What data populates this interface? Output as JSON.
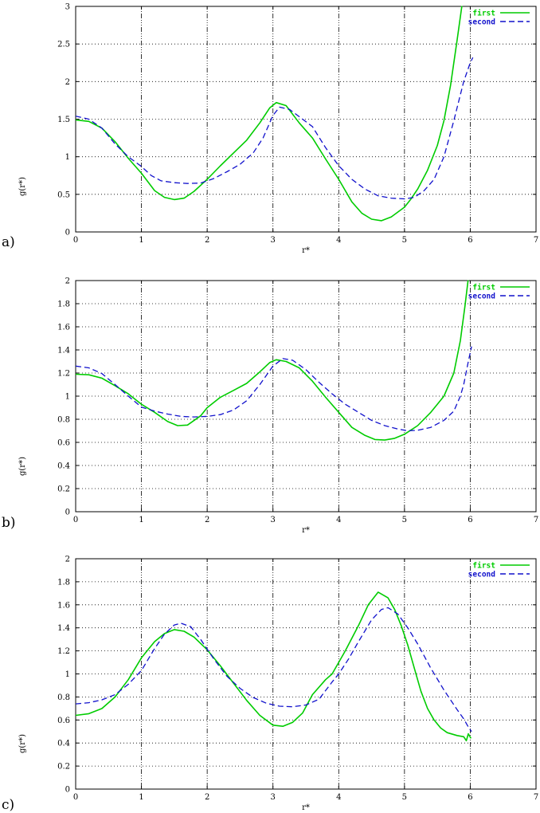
{
  "page": {
    "background": "#ffffff",
    "text_color": "#000000"
  },
  "series_colors": {
    "first": "#00cc00",
    "second": "#1111cc"
  },
  "chart_data": [
    {
      "type": "line",
      "panel_label": "a)",
      "title": "",
      "xlabel": "r*",
      "ylabel": "g(r*)",
      "xlim": [
        0,
        7
      ],
      "ylim": [
        0,
        3
      ],
      "xticks": [
        0,
        1,
        2,
        3,
        4,
        5,
        6,
        7
      ],
      "yticks": [
        0,
        0.5,
        1,
        1.5,
        2,
        2.5,
        3
      ],
      "grid": true,
      "legend_position": "top-right",
      "series": [
        {
          "name": "first",
          "color": "#00cc00",
          "style": "solid",
          "points": [
            [
              0,
              1.49
            ],
            [
              0.2,
              1.47
            ],
            [
              0.4,
              1.38
            ],
            [
              0.6,
              1.2
            ],
            [
              0.8,
              0.98
            ],
            [
              1,
              0.78
            ],
            [
              1.2,
              0.55
            ],
            [
              1.35,
              0.46
            ],
            [
              1.5,
              0.43
            ],
            [
              1.65,
              0.45
            ],
            [
              1.8,
              0.54
            ],
            [
              2,
              0.7
            ],
            [
              2.2,
              0.88
            ],
            [
              2.4,
              1.05
            ],
            [
              2.6,
              1.22
            ],
            [
              2.8,
              1.45
            ],
            [
              2.95,
              1.65
            ],
            [
              3.05,
              1.72
            ],
            [
              3.2,
              1.68
            ],
            [
              3.4,
              1.45
            ],
            [
              3.6,
              1.25
            ],
            [
              3.8,
              0.97
            ],
            [
              4,
              0.7
            ],
            [
              4.2,
              0.4
            ],
            [
              4.35,
              0.25
            ],
            [
              4.5,
              0.17
            ],
            [
              4.65,
              0.15
            ],
            [
              4.8,
              0.2
            ],
            [
              5,
              0.33
            ],
            [
              5.1,
              0.44
            ],
            [
              5.2,
              0.57
            ],
            [
              5.35,
              0.82
            ],
            [
              5.5,
              1.15
            ],
            [
              5.6,
              1.48
            ],
            [
              5.7,
              1.95
            ],
            [
              5.8,
              2.55
            ],
            [
              5.88,
              3.05
            ]
          ]
        },
        {
          "name": "second",
          "color": "#1111cc",
          "style": "dashed",
          "points": [
            [
              0,
              1.54
            ],
            [
              0.2,
              1.5
            ],
            [
              0.4,
              1.38
            ],
            [
              0.6,
              1.17
            ],
            [
              0.8,
              1
            ],
            [
              1,
              0.87
            ],
            [
              1.15,
              0.75
            ],
            [
              1.3,
              0.68
            ],
            [
              1.5,
              0.655
            ],
            [
              1.7,
              0.645
            ],
            [
              1.9,
              0.65
            ],
            [
              2.1,
              0.71
            ],
            [
              2.3,
              0.8
            ],
            [
              2.5,
              0.9
            ],
            [
              2.7,
              1.05
            ],
            [
              2.85,
              1.25
            ],
            [
              3,
              1.55
            ],
            [
              3.1,
              1.66
            ],
            [
              3.25,
              1.63
            ],
            [
              3.45,
              1.5
            ],
            [
              3.6,
              1.4
            ],
            [
              3.8,
              1.12
            ],
            [
              4,
              0.88
            ],
            [
              4.2,
              0.7
            ],
            [
              4.4,
              0.57
            ],
            [
              4.6,
              0.48
            ],
            [
              4.8,
              0.45
            ],
            [
              5,
              0.44
            ],
            [
              5.15,
              0.46
            ],
            [
              5.3,
              0.55
            ],
            [
              5.45,
              0.7
            ],
            [
              5.6,
              1
            ],
            [
              5.75,
              1.48
            ],
            [
              5.9,
              2
            ],
            [
              6,
              2.25
            ],
            [
              6.04,
              2.32
            ]
          ]
        }
      ]
    },
    {
      "type": "line",
      "panel_label": "b)",
      "title": "",
      "xlabel": "r*",
      "ylabel": "g(r*)",
      "xlim": [
        0,
        7
      ],
      "ylim": [
        0,
        2
      ],
      "xticks": [
        0,
        1,
        2,
        3,
        4,
        5,
        6,
        7
      ],
      "yticks": [
        0,
        0.2,
        0.4,
        0.6,
        0.8,
        1,
        1.2,
        1.4,
        1.6,
        1.8,
        2
      ],
      "grid": true,
      "legend_position": "top-right",
      "series": [
        {
          "name": "first",
          "color": "#00cc00",
          "style": "solid",
          "points": [
            [
              0,
              1.19
            ],
            [
              0.2,
              1.185
            ],
            [
              0.4,
              1.155
            ],
            [
              0.6,
              1.09
            ],
            [
              0.8,
              1.02
            ],
            [
              1,
              0.93
            ],
            [
              1.2,
              0.86
            ],
            [
              1.4,
              0.78
            ],
            [
              1.55,
              0.745
            ],
            [
              1.7,
              0.75
            ],
            [
              1.9,
              0.83
            ],
            [
              2,
              0.9
            ],
            [
              2.2,
              0.99
            ],
            [
              2.4,
              1.05
            ],
            [
              2.6,
              1.11
            ],
            [
              2.8,
              1.21
            ],
            [
              2.95,
              1.29
            ],
            [
              3.05,
              1.315
            ],
            [
              3.2,
              1.3
            ],
            [
              3.4,
              1.245
            ],
            [
              3.6,
              1.13
            ],
            [
              3.8,
              0.99
            ],
            [
              4,
              0.86
            ],
            [
              4.2,
              0.73
            ],
            [
              4.4,
              0.66
            ],
            [
              4.55,
              0.625
            ],
            [
              4.7,
              0.62
            ],
            [
              4.85,
              0.635
            ],
            [
              5,
              0.67
            ],
            [
              5.2,
              0.745
            ],
            [
              5.4,
              0.86
            ],
            [
              5.6,
              1
            ],
            [
              5.75,
              1.2
            ],
            [
              5.85,
              1.48
            ],
            [
              5.92,
              1.78
            ],
            [
              5.97,
              2.02
            ]
          ]
        },
        {
          "name": "second",
          "color": "#1111cc",
          "style": "dashed",
          "points": [
            [
              0,
              1.26
            ],
            [
              0.2,
              1.245
            ],
            [
              0.4,
              1.195
            ],
            [
              0.6,
              1.1
            ],
            [
              0.8,
              1
            ],
            [
              1,
              0.905
            ],
            [
              1.2,
              0.87
            ],
            [
              1.4,
              0.845
            ],
            [
              1.6,
              0.825
            ],
            [
              1.8,
              0.82
            ],
            [
              2,
              0.825
            ],
            [
              2.2,
              0.84
            ],
            [
              2.4,
              0.88
            ],
            [
              2.6,
              0.96
            ],
            [
              2.8,
              1.1
            ],
            [
              3,
              1.26
            ],
            [
              3.15,
              1.325
            ],
            [
              3.3,
              1.31
            ],
            [
              3.5,
              1.23
            ],
            [
              3.7,
              1.12
            ],
            [
              3.9,
              1.02
            ],
            [
              4.1,
              0.93
            ],
            [
              4.3,
              0.86
            ],
            [
              4.5,
              0.79
            ],
            [
              4.7,
              0.745
            ],
            [
              4.9,
              0.715
            ],
            [
              5.05,
              0.7
            ],
            [
              5.2,
              0.705
            ],
            [
              5.4,
              0.73
            ],
            [
              5.6,
              0.79
            ],
            [
              5.75,
              0.87
            ],
            [
              5.85,
              1
            ],
            [
              5.9,
              1.1
            ],
            [
              5.97,
              1.3
            ],
            [
              6.02,
              1.43
            ]
          ]
        }
      ]
    },
    {
      "type": "line",
      "panel_label": "c)",
      "title": "",
      "xlabel": "r*",
      "ylabel": "g(r*)",
      "xlim": [
        0,
        7
      ],
      "ylim": [
        0,
        2
      ],
      "xticks": [
        0,
        1,
        2,
        3,
        4,
        5,
        6,
        7
      ],
      "yticks": [
        0,
        0.2,
        0.4,
        0.6,
        0.8,
        1,
        1.2,
        1.4,
        1.6,
        1.8,
        2
      ],
      "grid": true,
      "legend_position": "top-right",
      "series": [
        {
          "name": "first",
          "color": "#00cc00",
          "style": "solid",
          "points": [
            [
              0,
              0.64
            ],
            [
              0.2,
              0.655
            ],
            [
              0.4,
              0.7
            ],
            [
              0.6,
              0.8
            ],
            [
              0.8,
              0.95
            ],
            [
              1,
              1.14
            ],
            [
              1.2,
              1.28
            ],
            [
              1.35,
              1.35
            ],
            [
              1.5,
              1.385
            ],
            [
              1.65,
              1.37
            ],
            [
              1.8,
              1.32
            ],
            [
              2,
              1.21
            ],
            [
              2.2,
              1.07
            ],
            [
              2.4,
              0.92
            ],
            [
              2.6,
              0.77
            ],
            [
              2.8,
              0.64
            ],
            [
              3,
              0.555
            ],
            [
              3.15,
              0.545
            ],
            [
              3.3,
              0.58
            ],
            [
              3.45,
              0.66
            ],
            [
              3.6,
              0.82
            ],
            [
              3.8,
              0.95
            ],
            [
              3.9,
              1
            ],
            [
              4.1,
              1.2
            ],
            [
              4.3,
              1.42
            ],
            [
              4.45,
              1.6
            ],
            [
              4.6,
              1.71
            ],
            [
              4.75,
              1.66
            ],
            [
              4.85,
              1.56
            ],
            [
              4.95,
              1.42
            ],
            [
              5.05,
              1.25
            ],
            [
              5.15,
              1.05
            ],
            [
              5.25,
              0.85
            ],
            [
              5.35,
              0.7
            ],
            [
              5.45,
              0.6
            ],
            [
              5.55,
              0.53
            ],
            [
              5.65,
              0.49
            ],
            [
              5.8,
              0.465
            ],
            [
              5.9,
              0.455
            ],
            [
              5.94,
              0.42
            ],
            [
              5.97,
              0.48
            ],
            [
              6.01,
              0.44
            ]
          ]
        },
        {
          "name": "second",
          "color": "#1111cc",
          "style": "dashed",
          "points": [
            [
              0,
              0.74
            ],
            [
              0.2,
              0.75
            ],
            [
              0.4,
              0.775
            ],
            [
              0.6,
              0.82
            ],
            [
              0.8,
              0.91
            ],
            [
              1,
              1.03
            ],
            [
              1.2,
              1.22
            ],
            [
              1.35,
              1.345
            ],
            [
              1.5,
              1.425
            ],
            [
              1.6,
              1.44
            ],
            [
              1.75,
              1.41
            ],
            [
              1.9,
              1.3
            ],
            [
              2.1,
              1.13
            ],
            [
              2.3,
              0.98
            ],
            [
              2.5,
              0.875
            ],
            [
              2.7,
              0.795
            ],
            [
              2.9,
              0.745
            ],
            [
              3.1,
              0.72
            ],
            [
              3.3,
              0.715
            ],
            [
              3.5,
              0.73
            ],
            [
              3.7,
              0.78
            ],
            [
              3.9,
              0.93
            ],
            [
              4,
              1
            ],
            [
              4.15,
              1.13
            ],
            [
              4.3,
              1.28
            ],
            [
              4.5,
              1.47
            ],
            [
              4.65,
              1.56
            ],
            [
              4.75,
              1.575
            ],
            [
              4.9,
              1.52
            ],
            [
              5.05,
              1.4
            ],
            [
              5.2,
              1.26
            ],
            [
              5.4,
              1.05
            ],
            [
              5.6,
              0.86
            ],
            [
              5.8,
              0.69
            ],
            [
              5.9,
              0.61
            ],
            [
              5.98,
              0.53
            ],
            [
              6.02,
              0.5
            ]
          ]
        }
      ]
    }
  ]
}
